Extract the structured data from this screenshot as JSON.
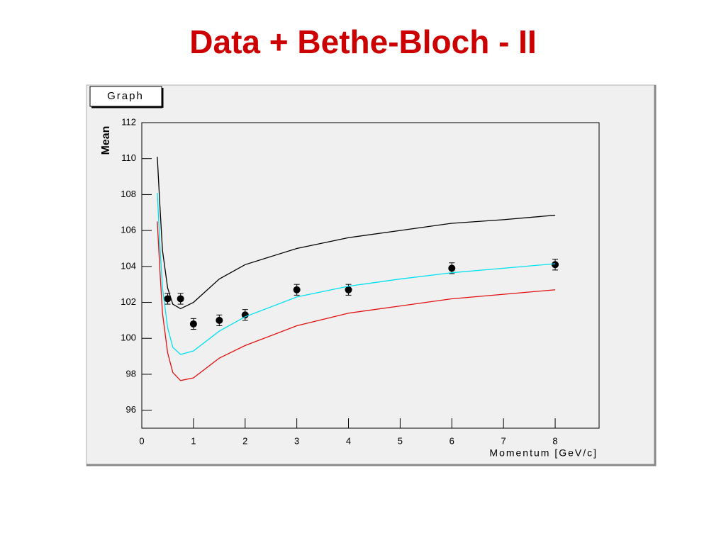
{
  "chart_data": {
    "type": "scatter",
    "title": "Data + Bethe-Bloch - II",
    "panel_label": "Graph",
    "x_label": "Momentum [GeV/c]",
    "y_label": "Mean",
    "xlim": [
      0,
      8.85
    ],
    "ylim": [
      95,
      112
    ],
    "xticks": [
      0,
      1,
      2,
      3,
      4,
      5,
      6,
      7,
      8
    ],
    "yticks": [
      96,
      98,
      100,
      102,
      104,
      106,
      108,
      110,
      112
    ],
    "series": [
      {
        "mode": "markers",
        "color": "#000000",
        "x": [
          0.5,
          0.75,
          1,
          1.5,
          2,
          3,
          4,
          6,
          8
        ],
        "values": [
          102.2,
          102.2,
          100.8,
          101.0,
          101.3,
          102.7,
          102.7,
          103.9,
          104.1
        ],
        "errors": [
          0.3,
          0.3,
          0.3,
          0.3,
          0.3,
          0.3,
          0.3,
          0.3,
          0.3
        ]
      },
      {
        "mode": "line",
        "color": "#000000",
        "x": [
          0.3,
          0.35,
          0.4,
          0.5,
          0.6,
          0.75,
          1,
          1.5,
          2,
          3,
          4,
          5,
          6,
          7,
          8
        ],
        "values": [
          110.1,
          107.4,
          104.9,
          102.8,
          101.9,
          101.65,
          102.0,
          103.3,
          104.1,
          105.0,
          105.6,
          106.0,
          106.4,
          106.6,
          106.85
        ]
      },
      {
        "mode": "line",
        "color": "#00e0f0",
        "x": [
          0.3,
          0.35,
          0.4,
          0.5,
          0.6,
          0.75,
          1,
          1.5,
          2,
          3,
          4,
          5,
          6,
          7,
          8
        ],
        "values": [
          108.1,
          105.2,
          102.8,
          100.6,
          99.5,
          99.1,
          99.3,
          100.4,
          101.2,
          102.3,
          102.9,
          103.3,
          103.65,
          103.9,
          104.15
        ]
      },
      {
        "mode": "line",
        "color": "#e01010",
        "x": [
          0.3,
          0.35,
          0.4,
          0.5,
          0.6,
          0.75,
          1,
          1.5,
          2,
          3,
          4,
          5,
          6,
          7,
          8
        ],
        "values": [
          106.5,
          103.8,
          101.4,
          99.2,
          98.1,
          97.65,
          97.8,
          98.9,
          99.6,
          100.7,
          101.4,
          101.8,
          102.2,
          102.45,
          102.7
        ]
      }
    ]
  }
}
